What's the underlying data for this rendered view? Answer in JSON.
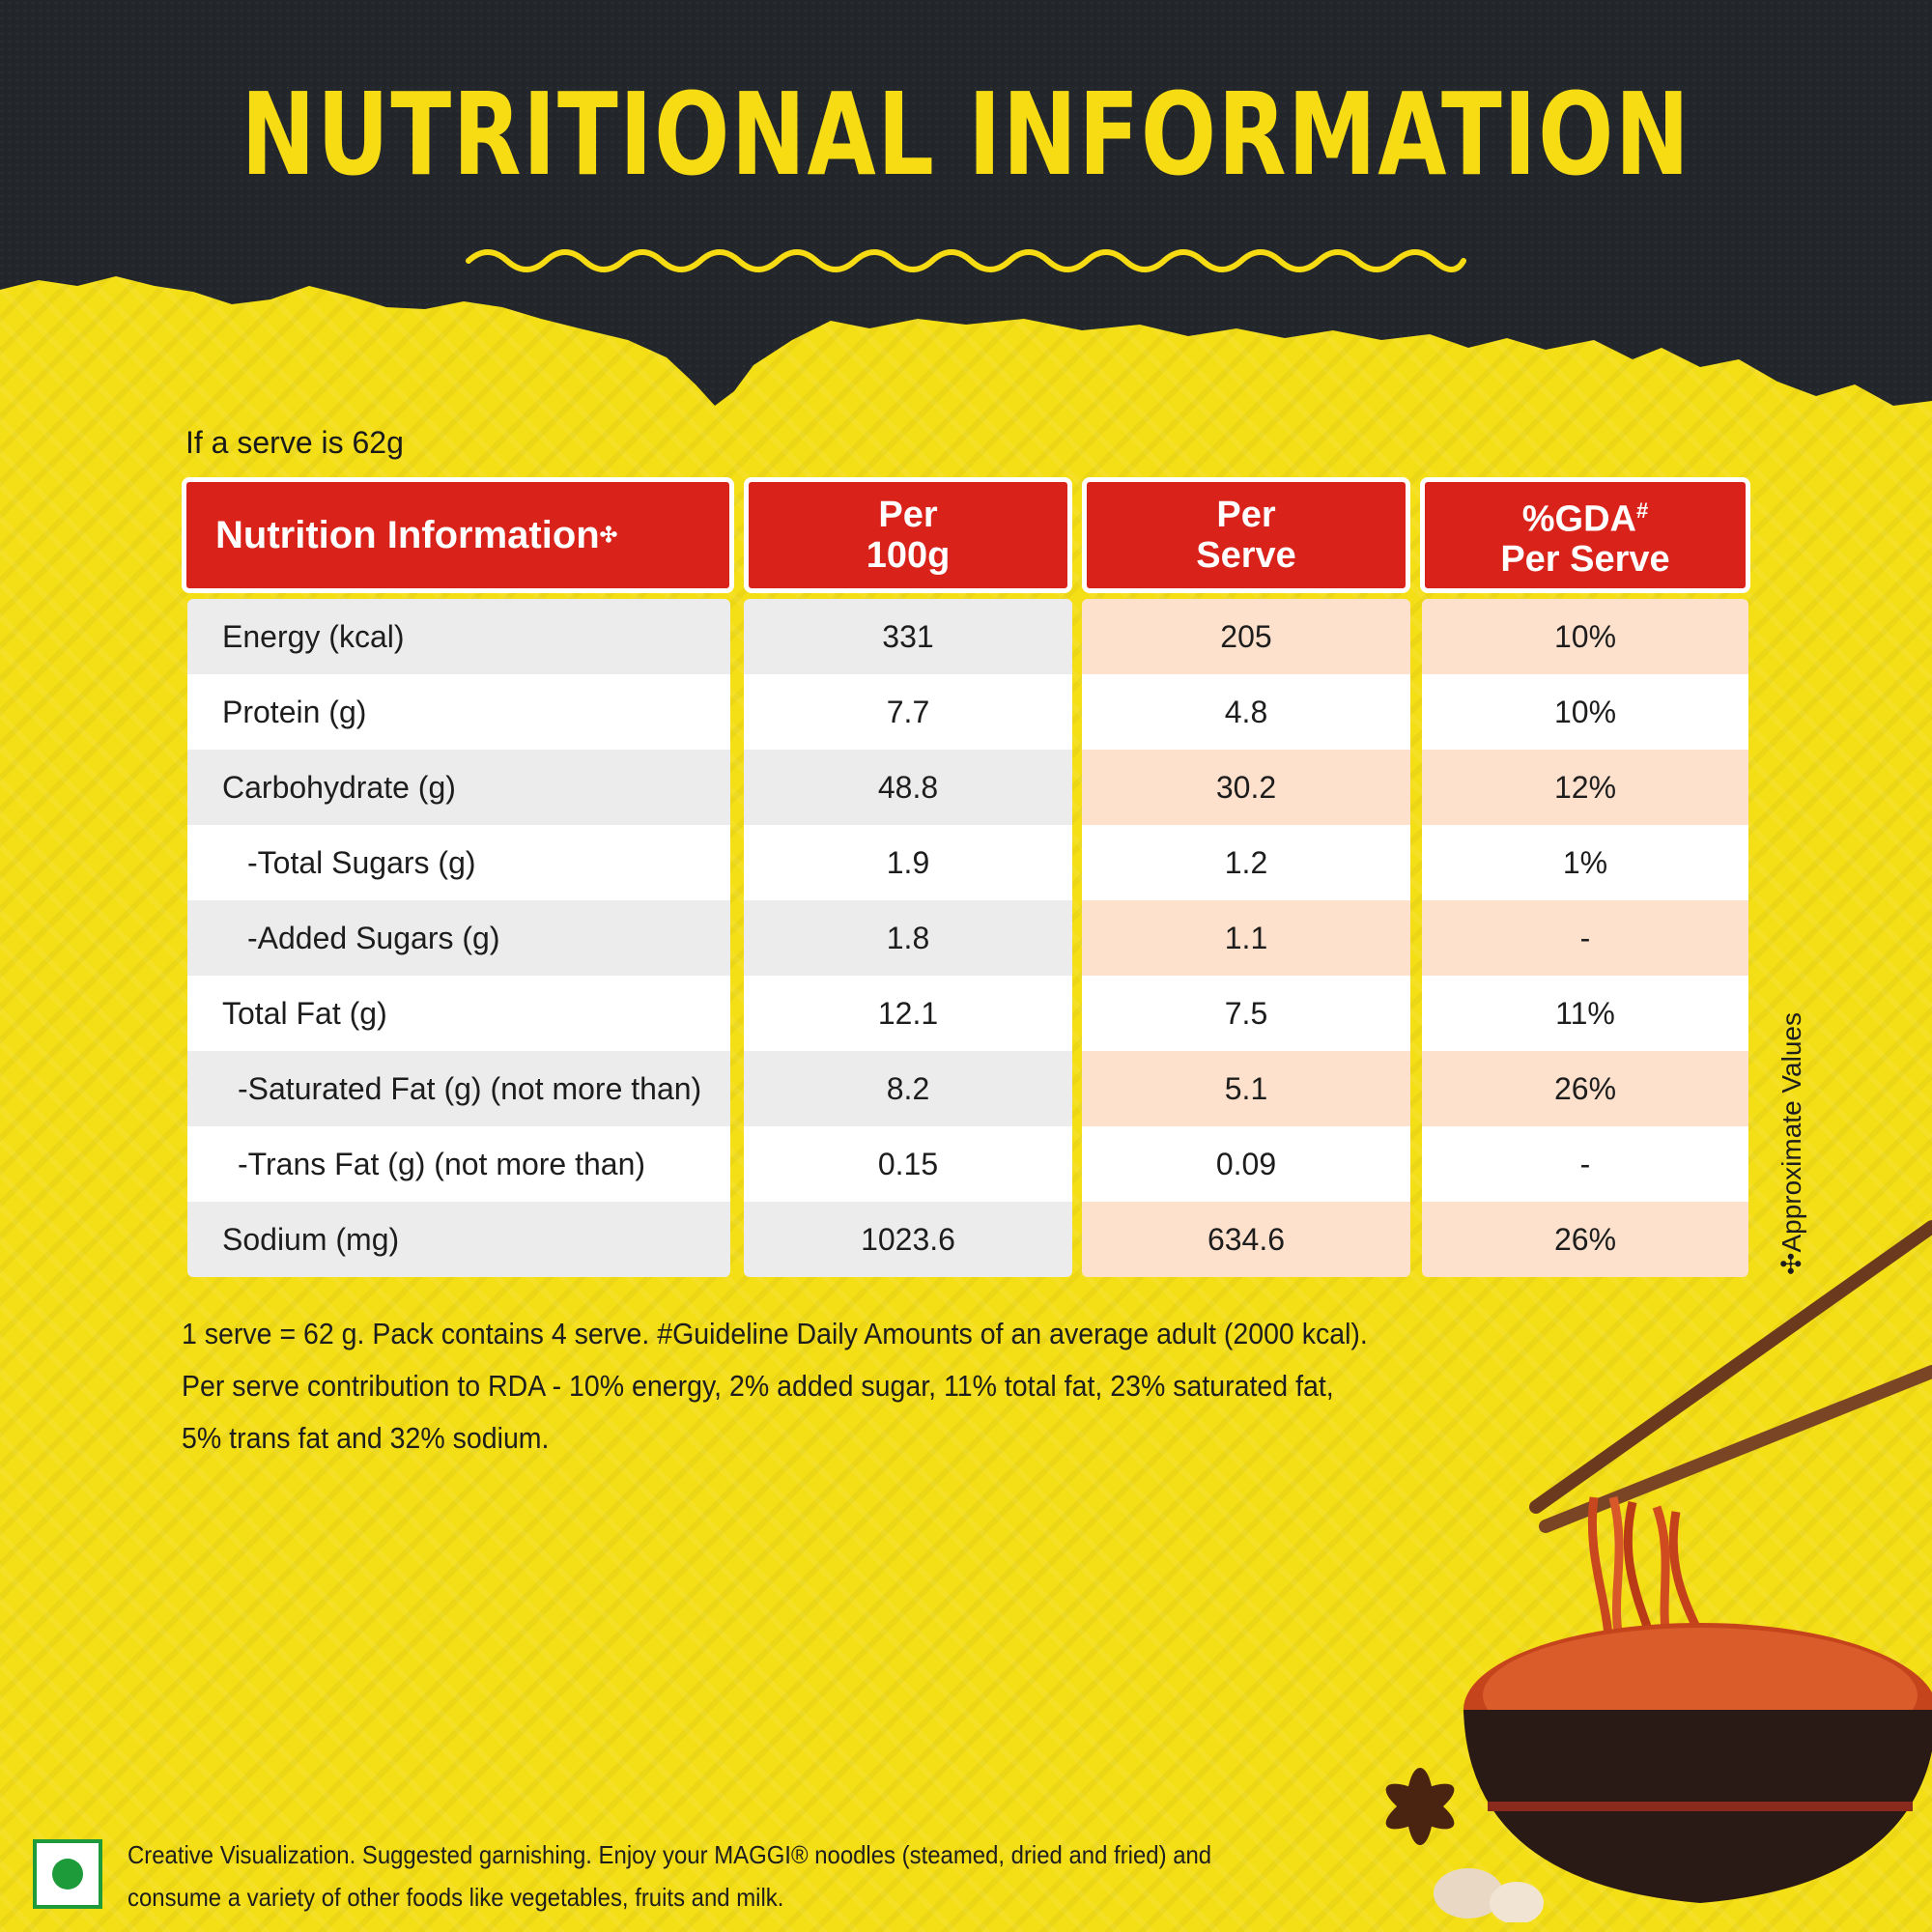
{
  "title": "NUTRITIONAL INFORMATION",
  "serve_note": "If a serve is 62g",
  "table": {
    "headers": {
      "nutrient": "Nutrition Information",
      "nutrient_mark": "✣",
      "per100_line1": "Per",
      "per100_line2": "100g",
      "serve_line1": "Per",
      "serve_line2": "Serve",
      "gda_line1": "%GDA",
      "gda_mark": "#",
      "gda_line2": "Per Serve"
    },
    "rows": [
      {
        "name": "Energy (kcal)",
        "per100": "331",
        "serve": "205",
        "gda": "10%"
      },
      {
        "name": "Protein (g)",
        "per100": "7.7",
        "serve": "4.8",
        "gda": "10%"
      },
      {
        "name": "Carbohydrate (g)",
        "per100": "48.8",
        "serve": "30.2",
        "gda": "12%"
      },
      {
        "name": "-Total Sugars (g)",
        "per100": "1.9",
        "serve": "1.2",
        "gda": "1%"
      },
      {
        "name": "-Added Sugars (g)",
        "per100": "1.8",
        "serve": "1.1",
        "gda": "-"
      },
      {
        "name": "Total Fat (g)",
        "per100": "12.1",
        "serve": "7.5",
        "gda": "11%"
      },
      {
        "name": "-Saturated Fat (g) (not more than)",
        "per100": "8.2",
        "serve": "5.1",
        "gda": "26%"
      },
      {
        "name": "-Trans Fat (g) (not more than)",
        "per100": "0.15",
        "serve": "0.09",
        "gda": "-"
      },
      {
        "name": "Sodium (mg)",
        "per100": "1023.6",
        "serve": "634.6",
        "gda": "26%"
      }
    ]
  },
  "approx_note": "✣Approximate Values",
  "footnotes": [
    "1 serve = 62 g. Pack contains 4 serve. #Guideline Daily Amounts of an average adult  (2000 kcal).",
    "Per serve contribution to RDA - 10% energy, 2% added sugar, 11% total fat, 23% saturated fat,",
    "5% trans fat and 32% sodium."
  ],
  "disclaimer": {
    "line1": "Creative Visualization. Suggested garnishing. Enjoy your MAGGI® noodles (steamed, dried and fried) and",
    "line2": "consume a variety of other foods like vegetables, fruits and milk."
  },
  "colors": {
    "background": "#f4de16",
    "header_red": "#d8221a",
    "slate": "#23272b",
    "title_yellow": "#f7dc14",
    "veg_green": "#1d9a3a"
  }
}
